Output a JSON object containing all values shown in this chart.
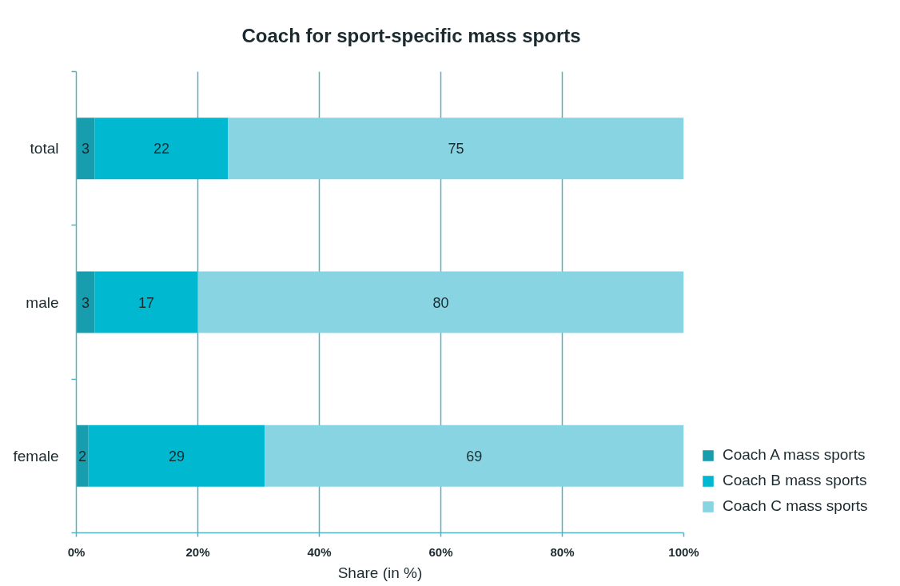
{
  "chart_data": {
    "type": "bar",
    "orientation": "horizontal",
    "stacked": true,
    "title": "Coach for sport-specific mass sports",
    "xlabel": "Share (in %)",
    "categories": [
      "total",
      "male",
      "female"
    ],
    "series": [
      {
        "name": "Coach A mass sports",
        "color": "#189dae",
        "values": [
          3,
          3,
          2
        ]
      },
      {
        "name": "Coach B mass sports",
        "color": "#00b9d1",
        "values": [
          22,
          17,
          29
        ]
      },
      {
        "name": "Coach C mass sports",
        "color": "#89d4e2",
        "values": [
          75,
          80,
          69
        ]
      }
    ],
    "xlim": [
      0,
      100
    ],
    "xticks": [
      {
        "value": 0,
        "label": "0%"
      },
      {
        "value": 20,
        "label": "20%"
      },
      {
        "value": 40,
        "label": "40%"
      },
      {
        "value": 60,
        "label": "60%"
      },
      {
        "value": 80,
        "label": "80%"
      },
      {
        "value": 100,
        "label": "100%"
      }
    ],
    "grid": "x",
    "legend": "bottom right",
    "data_labels": true
  }
}
